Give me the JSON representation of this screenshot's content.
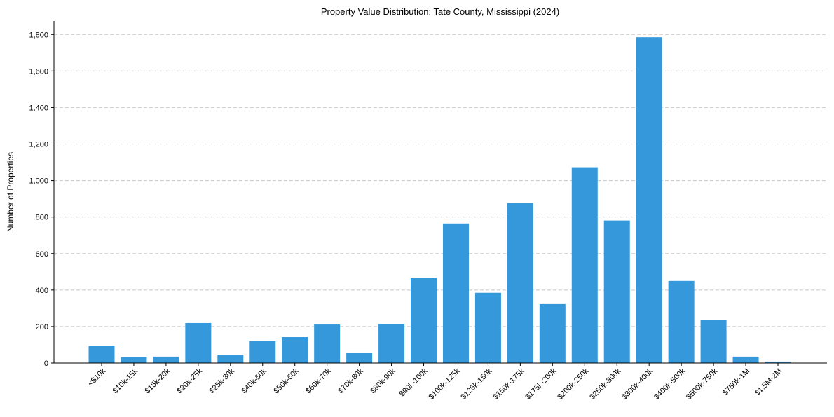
{
  "chart_data": {
    "type": "bar",
    "title": "Property Value Distribution: Tate County, Mississippi (2024)",
    "xlabel": "",
    "ylabel": "Number of Properties",
    "ylim": [
      0,
      1874
    ],
    "yticks": [
      0,
      200,
      400,
      600,
      800,
      1000,
      1200,
      1400,
      1600,
      1800
    ],
    "ytick_labels": [
      "0",
      "200",
      "400",
      "600",
      "800",
      "1,000",
      "1,200",
      "1,400",
      "1,600",
      "1,800"
    ],
    "grid": "y-dashed",
    "color": "#3498db",
    "categories": [
      "<$10k",
      "$10k-15k",
      "$15k-20k",
      "$20k-25k",
      "$25k-30k",
      "$40k-50k",
      "$50k-60k",
      "$60k-70k",
      "$70k-80k",
      "$80k-90k",
      "$90k-100k",
      "$100k-125k",
      "$125k-150k",
      "$150k-175k",
      "$175k-200k",
      "$200k-250k",
      "$250k-300k",
      "$300k-400k",
      "$400k-500k",
      "$500k-750k",
      "$750k-1M",
      "$1.5M-2M"
    ],
    "values": [
      96,
      31,
      35,
      219,
      46,
      119,
      142,
      211,
      54,
      215,
      465,
      765,
      385,
      877,
      323,
      1073,
      781,
      1785,
      450,
      238,
      35,
      8
    ]
  }
}
